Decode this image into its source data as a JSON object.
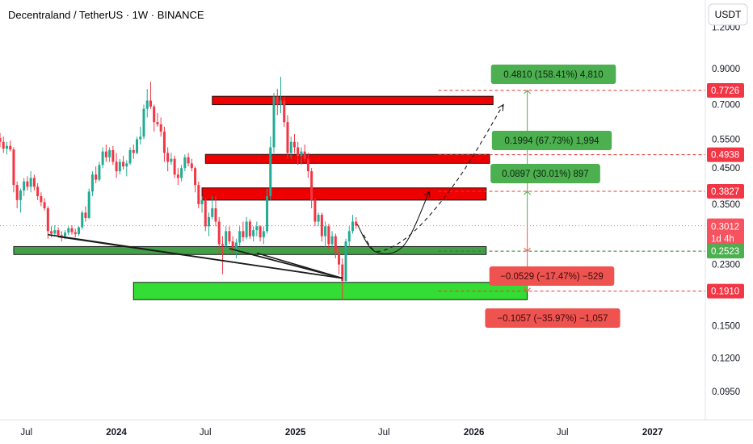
{
  "header": {
    "title": "Decentraland / TetherUS · 1W · BINANCE"
  },
  "currency_button": {
    "label": "USDT"
  },
  "colors": {
    "up": "#22ab94",
    "down": "#f23645",
    "resistance_zone": "#ee0000",
    "support_zone": "#43a047",
    "demand_zone": "#33dd33",
    "profit_label": "#4caf50",
    "loss_label": "#ef5350"
  },
  "chart_data": {
    "type": "candlestick",
    "title": "Decentraland / TetherUS · 1W · BINANCE",
    "y_scale": "log",
    "ylim": [
      0.078,
      1.45
    ],
    "y_ticks": [
      1.2,
      0.9,
      0.7,
      0.55,
      0.45,
      0.35,
      0.23,
      0.15,
      0.12,
      0.095
    ],
    "y_tick_labels": [
      "1.2000",
      "0.9000",
      "0.7000",
      "0.5500",
      "0.4500",
      "0.3500",
      "0.2300",
      "0.1500",
      "0.1200",
      "0.0950"
    ],
    "x_range": [
      "2023-05-08",
      "2027-04-19"
    ],
    "x_ticks": [
      {
        "date": "2023-07-01",
        "label": "Jul"
      },
      {
        "date": "2024-01-01",
        "label": "2024"
      },
      {
        "date": "2024-07-01",
        "label": "Jul"
      },
      {
        "date": "2025-01-01",
        "label": "2025"
      },
      {
        "date": "2025-07-01",
        "label": "Jul"
      },
      {
        "date": "2026-01-01",
        "label": "2026"
      },
      {
        "date": "2026-07-01",
        "label": "Jul"
      },
      {
        "date": "2027-01-01",
        "label": "2027"
      }
    ],
    "price_badges": [
      {
        "value": "0.7726",
        "type": "level"
      },
      {
        "value": "0.4938",
        "type": "level"
      },
      {
        "value": "0.3827",
        "type": "level"
      },
      {
        "value": "0.3012",
        "sub": "1d 4h",
        "type": "last"
      },
      {
        "value": "0.2523",
        "type": "support"
      },
      {
        "value": "0.1910",
        "type": "level"
      }
    ],
    "zones": [
      {
        "kind": "resistance",
        "from": "2024-07-15",
        "to": "2026-02-09",
        "low": 0.7,
        "high": 0.742
      },
      {
        "kind": "resistance",
        "from": "2024-07-01",
        "to": "2026-02-02",
        "low": 0.465,
        "high": 0.495
      },
      {
        "kind": "resistance",
        "from": "2024-06-24",
        "to": "2026-01-26",
        "low": 0.36,
        "high": 0.392
      },
      {
        "kind": "support",
        "from": "2023-06-05",
        "to": "2026-01-26",
        "low": 0.2465,
        "high": 0.2605
      },
      {
        "kind": "demand",
        "from": "2024-02-05",
        "to": "2026-04-20",
        "low": 0.18,
        "high": 0.203
      }
    ],
    "horizontal_lines": [
      0.7726,
      0.4938,
      0.3827,
      0.2523,
      0.191
    ],
    "measurements": [
      {
        "text": "0.4810 (158.41%) 4,810",
        "kind": "profit"
      },
      {
        "text": "0.1994 (67.73%) 1,994",
        "kind": "profit"
      },
      {
        "text": "0.0897 (30.01%) 897",
        "kind": "profit"
      },
      {
        "text": "−0.0529 (−17.47%) −529",
        "kind": "loss"
      },
      {
        "text": "−0.1057 (−35.97%) −1,057",
        "kind": "loss"
      }
    ],
    "candles": [
      {
        "x": "2023-05-08",
        "o": 0.555,
        "h": 0.575,
        "l": 0.52,
        "c": 0.54
      },
      {
        "x": "2023-05-15",
        "o": 0.54,
        "h": 0.56,
        "l": 0.5,
        "c": 0.515
      },
      {
        "x": "2023-05-22",
        "o": 0.515,
        "h": 0.54,
        "l": 0.495,
        "c": 0.525
      },
      {
        "x": "2023-05-29",
        "o": 0.525,
        "h": 0.545,
        "l": 0.505,
        "c": 0.512
      },
      {
        "x": "2023-06-05",
        "o": 0.512,
        "h": 0.52,
        "l": 0.38,
        "c": 0.4
      },
      {
        "x": "2023-06-12",
        "o": 0.4,
        "h": 0.41,
        "l": 0.34,
        "c": 0.36
      },
      {
        "x": "2023-06-19",
        "o": 0.36,
        "h": 0.39,
        "l": 0.33,
        "c": 0.385
      },
      {
        "x": "2023-06-26",
        "o": 0.385,
        "h": 0.42,
        "l": 0.37,
        "c": 0.41
      },
      {
        "x": "2023-07-03",
        "o": 0.41,
        "h": 0.425,
        "l": 0.385,
        "c": 0.395
      },
      {
        "x": "2023-07-10",
        "o": 0.395,
        "h": 0.44,
        "l": 0.38,
        "c": 0.42
      },
      {
        "x": "2023-07-17",
        "o": 0.42,
        "h": 0.43,
        "l": 0.385,
        "c": 0.395
      },
      {
        "x": "2023-07-24",
        "o": 0.395,
        "h": 0.405,
        "l": 0.36,
        "c": 0.37
      },
      {
        "x": "2023-07-31",
        "o": 0.37,
        "h": 0.38,
        "l": 0.345,
        "c": 0.355
      },
      {
        "x": "2023-08-07",
        "o": 0.355,
        "h": 0.365,
        "l": 0.335,
        "c": 0.34
      },
      {
        "x": "2023-08-14",
        "o": 0.34,
        "h": 0.345,
        "l": 0.275,
        "c": 0.29
      },
      {
        "x": "2023-08-21",
        "o": 0.29,
        "h": 0.3,
        "l": 0.278,
        "c": 0.285
      },
      {
        "x": "2023-08-28",
        "o": 0.285,
        "h": 0.302,
        "l": 0.28,
        "c": 0.292
      },
      {
        "x": "2023-09-04",
        "o": 0.292,
        "h": 0.298,
        "l": 0.278,
        "c": 0.282
      },
      {
        "x": "2023-09-11",
        "o": 0.282,
        "h": 0.29,
        "l": 0.27,
        "c": 0.28
      },
      {
        "x": "2023-09-18",
        "o": 0.28,
        "h": 0.292,
        "l": 0.274,
        "c": 0.287
      },
      {
        "x": "2023-09-25",
        "o": 0.287,
        "h": 0.3,
        "l": 0.282,
        "c": 0.296
      },
      {
        "x": "2023-10-02",
        "o": 0.296,
        "h": 0.302,
        "l": 0.283,
        "c": 0.288
      },
      {
        "x": "2023-10-09",
        "o": 0.288,
        "h": 0.295,
        "l": 0.278,
        "c": 0.284
      },
      {
        "x": "2023-10-16",
        "o": 0.284,
        "h": 0.3,
        "l": 0.28,
        "c": 0.298
      },
      {
        "x": "2023-10-23",
        "o": 0.298,
        "h": 0.335,
        "l": 0.294,
        "c": 0.33
      },
      {
        "x": "2023-10-30",
        "o": 0.33,
        "h": 0.345,
        "l": 0.31,
        "c": 0.318
      },
      {
        "x": "2023-11-06",
        "o": 0.318,
        "h": 0.39,
        "l": 0.315,
        "c": 0.382
      },
      {
        "x": "2023-11-13",
        "o": 0.382,
        "h": 0.44,
        "l": 0.37,
        "c": 0.43
      },
      {
        "x": "2023-11-20",
        "o": 0.43,
        "h": 0.455,
        "l": 0.405,
        "c": 0.415
      },
      {
        "x": "2023-11-27",
        "o": 0.415,
        "h": 0.47,
        "l": 0.41,
        "c": 0.46
      },
      {
        "x": "2023-12-04",
        "o": 0.46,
        "h": 0.52,
        "l": 0.45,
        "c": 0.505
      },
      {
        "x": "2023-12-11",
        "o": 0.505,
        "h": 0.53,
        "l": 0.47,
        "c": 0.485
      },
      {
        "x": "2023-12-18",
        "o": 0.485,
        "h": 0.52,
        "l": 0.47,
        "c": 0.51
      },
      {
        "x": "2023-12-25",
        "o": 0.51,
        "h": 0.525,
        "l": 0.46,
        "c": 0.47
      },
      {
        "x": "2024-01-01",
        "o": 0.47,
        "h": 0.5,
        "l": 0.42,
        "c": 0.44
      },
      {
        "x": "2024-01-08",
        "o": 0.44,
        "h": 0.48,
        "l": 0.43,
        "c": 0.47
      },
      {
        "x": "2024-01-15",
        "o": 0.47,
        "h": 0.49,
        "l": 0.445,
        "c": 0.455
      },
      {
        "x": "2024-01-22",
        "o": 0.455,
        "h": 0.475,
        "l": 0.425,
        "c": 0.465
      },
      {
        "x": "2024-01-29",
        "o": 0.465,
        "h": 0.52,
        "l": 0.46,
        "c": 0.51
      },
      {
        "x": "2024-02-05",
        "o": 0.51,
        "h": 0.53,
        "l": 0.48,
        "c": 0.5
      },
      {
        "x": "2024-02-12",
        "o": 0.5,
        "h": 0.56,
        "l": 0.495,
        "c": 0.55
      },
      {
        "x": "2024-02-19",
        "o": 0.55,
        "h": 0.6,
        "l": 0.53,
        "c": 0.56
      },
      {
        "x": "2024-02-26",
        "o": 0.56,
        "h": 0.7,
        "l": 0.55,
        "c": 0.68
      },
      {
        "x": "2024-03-04",
        "o": 0.68,
        "h": 0.78,
        "l": 0.64,
        "c": 0.72
      },
      {
        "x": "2024-03-11",
        "o": 0.72,
        "h": 0.82,
        "l": 0.68,
        "c": 0.69
      },
      {
        "x": "2024-03-18",
        "o": 0.69,
        "h": 0.7,
        "l": 0.58,
        "c": 0.62
      },
      {
        "x": "2024-03-25",
        "o": 0.62,
        "h": 0.66,
        "l": 0.6,
        "c": 0.61
      },
      {
        "x": "2024-04-01",
        "o": 0.61,
        "h": 0.64,
        "l": 0.56,
        "c": 0.58
      },
      {
        "x": "2024-04-08",
        "o": 0.58,
        "h": 0.6,
        "l": 0.47,
        "c": 0.5
      },
      {
        "x": "2024-04-15",
        "o": 0.5,
        "h": 0.52,
        "l": 0.44,
        "c": 0.47
      },
      {
        "x": "2024-04-22",
        "o": 0.47,
        "h": 0.5,
        "l": 0.46,
        "c": 0.48
      },
      {
        "x": "2024-04-29",
        "o": 0.48,
        "h": 0.49,
        "l": 0.42,
        "c": 0.43
      },
      {
        "x": "2024-05-06",
        "o": 0.43,
        "h": 0.45,
        "l": 0.4,
        "c": 0.42
      },
      {
        "x": "2024-05-13",
        "o": 0.42,
        "h": 0.46,
        "l": 0.41,
        "c": 0.45
      },
      {
        "x": "2024-05-20",
        "o": 0.45,
        "h": 0.495,
        "l": 0.44,
        "c": 0.485
      },
      {
        "x": "2024-05-27",
        "o": 0.485,
        "h": 0.5,
        "l": 0.455,
        "c": 0.465
      },
      {
        "x": "2024-06-03",
        "o": 0.465,
        "h": 0.48,
        "l": 0.44,
        "c": 0.45
      },
      {
        "x": "2024-06-10",
        "o": 0.45,
        "h": 0.455,
        "l": 0.38,
        "c": 0.4
      },
      {
        "x": "2024-06-17",
        "o": 0.4,
        "h": 0.41,
        "l": 0.34,
        "c": 0.35
      },
      {
        "x": "2024-06-24",
        "o": 0.35,
        "h": 0.37,
        "l": 0.33,
        "c": 0.36
      },
      {
        "x": "2024-07-01",
        "o": 0.36,
        "h": 0.365,
        "l": 0.29,
        "c": 0.3
      },
      {
        "x": "2024-07-08",
        "o": 0.3,
        "h": 0.33,
        "l": 0.28,
        "c": 0.32
      },
      {
        "x": "2024-07-15",
        "o": 0.32,
        "h": 0.37,
        "l": 0.315,
        "c": 0.34
      },
      {
        "x": "2024-07-22",
        "o": 0.34,
        "h": 0.37,
        "l": 0.3,
        "c": 0.31
      },
      {
        "x": "2024-07-29",
        "o": 0.31,
        "h": 0.32,
        "l": 0.25,
        "c": 0.265
      },
      {
        "x": "2024-08-05",
        "o": 0.265,
        "h": 0.28,
        "l": 0.215,
        "c": 0.262
      },
      {
        "x": "2024-08-12",
        "o": 0.262,
        "h": 0.3,
        "l": 0.255,
        "c": 0.29
      },
      {
        "x": "2024-08-19",
        "o": 0.29,
        "h": 0.3,
        "l": 0.265,
        "c": 0.27
      },
      {
        "x": "2024-08-26",
        "o": 0.27,
        "h": 0.28,
        "l": 0.25,
        "c": 0.258
      },
      {
        "x": "2024-09-02",
        "o": 0.258,
        "h": 0.275,
        "l": 0.24,
        "c": 0.268
      },
      {
        "x": "2024-09-09",
        "o": 0.268,
        "h": 0.3,
        "l": 0.262,
        "c": 0.29
      },
      {
        "x": "2024-09-16",
        "o": 0.29,
        "h": 0.31,
        "l": 0.27,
        "c": 0.278
      },
      {
        "x": "2024-09-23",
        "o": 0.278,
        "h": 0.32,
        "l": 0.274,
        "c": 0.31
      },
      {
        "x": "2024-09-30",
        "o": 0.31,
        "h": 0.315,
        "l": 0.275,
        "c": 0.28
      },
      {
        "x": "2024-10-07",
        "o": 0.28,
        "h": 0.3,
        "l": 0.27,
        "c": 0.292
      },
      {
        "x": "2024-10-14",
        "o": 0.292,
        "h": 0.31,
        "l": 0.28,
        "c": 0.3
      },
      {
        "x": "2024-10-21",
        "o": 0.3,
        "h": 0.302,
        "l": 0.27,
        "c": 0.278
      },
      {
        "x": "2024-10-28",
        "o": 0.278,
        "h": 0.3,
        "l": 0.265,
        "c": 0.29
      },
      {
        "x": "2024-11-04",
        "o": 0.29,
        "h": 0.39,
        "l": 0.285,
        "c": 0.37
      },
      {
        "x": "2024-11-11",
        "o": 0.37,
        "h": 0.56,
        "l": 0.36,
        "c": 0.52
      },
      {
        "x": "2024-11-18",
        "o": 0.52,
        "h": 0.76,
        "l": 0.5,
        "c": 0.74
      },
      {
        "x": "2024-11-25",
        "o": 0.74,
        "h": 0.78,
        "l": 0.65,
        "c": 0.7
      },
      {
        "x": "2024-12-02",
        "o": 0.7,
        "h": 0.85,
        "l": 0.66,
        "c": 0.72
      },
      {
        "x": "2024-12-09",
        "o": 0.72,
        "h": 0.74,
        "l": 0.6,
        "c": 0.62
      },
      {
        "x": "2024-12-16",
        "o": 0.62,
        "h": 0.65,
        "l": 0.48,
        "c": 0.5
      },
      {
        "x": "2024-12-23",
        "o": 0.5,
        "h": 0.56,
        "l": 0.48,
        "c": 0.54
      },
      {
        "x": "2024-12-30",
        "o": 0.54,
        "h": 0.57,
        "l": 0.5,
        "c": 0.52
      },
      {
        "x": "2025-01-06",
        "o": 0.52,
        "h": 0.54,
        "l": 0.46,
        "c": 0.49
      },
      {
        "x": "2025-01-13",
        "o": 0.49,
        "h": 0.52,
        "l": 0.46,
        "c": 0.505
      },
      {
        "x": "2025-01-20",
        "o": 0.505,
        "h": 0.53,
        "l": 0.47,
        "c": 0.48
      },
      {
        "x": "2025-01-27",
        "o": 0.48,
        "h": 0.5,
        "l": 0.42,
        "c": 0.44
      },
      {
        "x": "2025-02-03",
        "o": 0.44,
        "h": 0.45,
        "l": 0.34,
        "c": 0.36
      },
      {
        "x": "2025-02-10",
        "o": 0.36,
        "h": 0.365,
        "l": 0.3,
        "c": 0.31
      },
      {
        "x": "2025-02-17",
        "o": 0.31,
        "h": 0.33,
        "l": 0.3,
        "c": 0.325
      },
      {
        "x": "2025-02-24",
        "o": 0.325,
        "h": 0.33,
        "l": 0.27,
        "c": 0.28
      },
      {
        "x": "2025-03-03",
        "o": 0.28,
        "h": 0.31,
        "l": 0.26,
        "c": 0.3
      },
      {
        "x": "2025-03-10",
        "o": 0.3,
        "h": 0.305,
        "l": 0.255,
        "c": 0.265
      },
      {
        "x": "2025-03-17",
        "o": 0.265,
        "h": 0.29,
        "l": 0.26,
        "c": 0.28
      },
      {
        "x": "2025-03-24",
        "o": 0.28,
        "h": 0.285,
        "l": 0.24,
        "c": 0.25
      },
      {
        "x": "2025-03-31",
        "o": 0.25,
        "h": 0.26,
        "l": 0.215,
        "c": 0.23
      },
      {
        "x": "2025-04-07",
        "o": 0.23,
        "h": 0.24,
        "l": 0.18,
        "c": 0.205
      },
      {
        "x": "2025-04-14",
        "o": 0.205,
        "h": 0.275,
        "l": 0.202,
        "c": 0.27
      },
      {
        "x": "2025-04-21",
        "o": 0.27,
        "h": 0.3,
        "l": 0.26,
        "c": 0.29
      },
      {
        "x": "2025-04-28",
        "o": 0.29,
        "h": 0.325,
        "l": 0.285,
        "c": 0.31
      },
      {
        "x": "2025-05-05",
        "o": 0.31,
        "h": 0.32,
        "l": 0.295,
        "c": 0.3012
      }
    ],
    "trendlines": [
      {
        "from": [
          "2023-08-14",
          0.283
        ],
        "to": [
          "2025-04-07",
          0.209
        ]
      },
      {
        "from": [
          "2023-09-04",
          0.279
        ],
        "to": [
          "2025-04-07",
          0.209
        ]
      },
      {
        "from": [
          "2024-08-19",
          0.257
        ],
        "to": [
          "2025-04-07",
          0.209
        ]
      },
      {
        "from": [
          "2024-09-09",
          0.252
        ],
        "to": [
          "2025-04-07",
          0.209
        ]
      },
      {
        "from": [
          "2024-10-14",
          0.249
        ],
        "to": [
          "2025-04-07",
          0.209
        ]
      }
    ],
    "projection_paths": [
      {
        "style": "solid",
        "points": [
          [
            "2025-05-07",
            0.305
          ],
          [
            "2025-06-12",
            0.252
          ],
          [
            "2025-08-10",
            0.262
          ],
          [
            "2025-10-02",
            0.383
          ]
        ]
      },
      {
        "style": "dashed",
        "points": [
          [
            "2025-05-20",
            0.283
          ],
          [
            "2025-06-20",
            0.252
          ],
          [
            "2025-09-01",
            0.29
          ],
          [
            "2025-12-01",
            0.42
          ],
          [
            "2026-03-02",
            0.7
          ]
        ]
      }
    ]
  }
}
